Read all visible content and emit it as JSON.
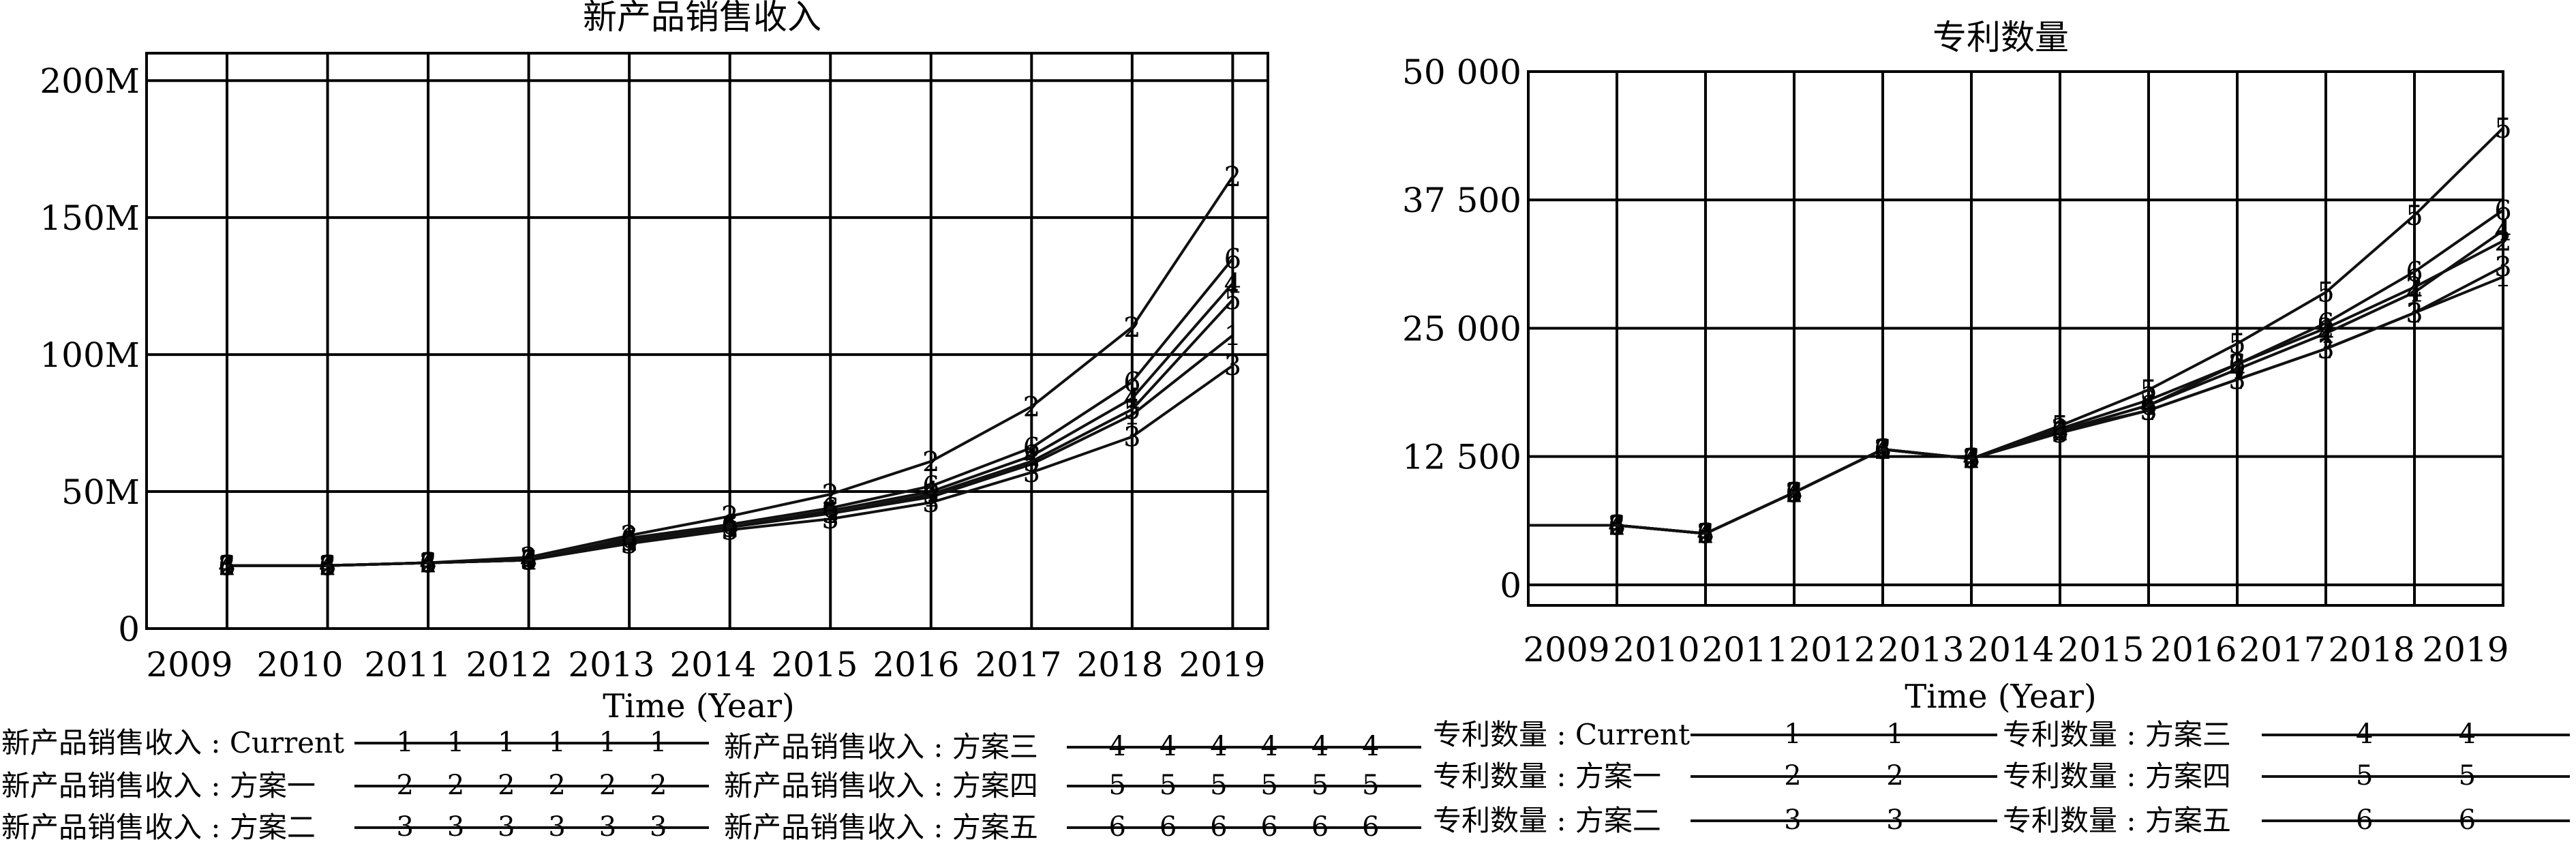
{
  "chart_data": [
    {
      "type": "line",
      "title": "新产品销售收入",
      "xlabel": "Time (Year)",
      "ylabel": "",
      "x": [
        2009,
        2010,
        2011,
        2012,
        2013,
        2014,
        2015,
        2016,
        2017,
        2018,
        2019
      ],
      "x_tick_labels": [
        "2009",
        "2010",
        "2011",
        "2012",
        "2013",
        "2014",
        "2015",
        "2016",
        "2017",
        "2018",
        "2019"
      ],
      "xlim": [
        2008.2,
        2019.35
      ],
      "ylim": [
        0,
        210
      ],
      "y_ticks": [
        0,
        50,
        100,
        150,
        200
      ],
      "y_tick_labels": [
        "0",
        "50M",
        "100M",
        "150M",
        "200M"
      ],
      "grid": true,
      "series": [
        {
          "name": "新产品销售收入 : Current",
          "label": "1",
          "values": [
            23,
            23,
            24,
            25,
            32,
            37,
            42,
            48,
            60,
            78,
            107
          ]
        },
        {
          "name": "新产品销售收入 : 方案一",
          "label": "2",
          "values": [
            23,
            23,
            24,
            26,
            34,
            41,
            49,
            61,
            81,
            110,
            165
          ]
        },
        {
          "name": "新产品销售收入 : 方案二",
          "label": "3",
          "values": [
            23,
            23,
            24,
            25,
            31,
            36,
            40,
            46,
            57,
            70,
            96
          ]
        },
        {
          "name": "新产品销售收入 : 方案三",
          "label": "4",
          "values": [
            23,
            23,
            24,
            25,
            32,
            37,
            43,
            50,
            63,
            84,
            126
          ]
        },
        {
          "name": "新产品销售收入 : 方案四",
          "label": "5",
          "values": [
            23,
            23,
            24,
            25,
            32,
            37,
            42,
            49,
            61,
            80,
            120
          ]
        },
        {
          "name": "新产品销售收入 : 方案五",
          "label": "6",
          "values": [
            23,
            23,
            24,
            25,
            33,
            38,
            44,
            52,
            66,
            90,
            135
          ]
        }
      ]
    },
    {
      "type": "line",
      "title": "专利数量",
      "xlabel": "Time (Year)",
      "ylabel": "",
      "x": [
        2009,
        2010,
        2011,
        2012,
        2013,
        2014,
        2015,
        2016,
        2017,
        2018,
        2019
      ],
      "x_tick_labels": [
        "2009",
        "2010",
        "2011",
        "2012",
        "2013",
        "2014",
        "2015",
        "2016",
        "2017",
        "2018",
        "2019"
      ],
      "xlim": [
        2008.0,
        2019.0
      ],
      "ylim": [
        -2000,
        50000
      ],
      "y_ticks": [
        0,
        12500,
        25000,
        37500,
        50000
      ],
      "y_tick_labels": [
        "0",
        "12 500",
        "25 000",
        "37 500",
        "50 000"
      ],
      "grid": true,
      "series": [
        {
          "name": "专利数量 : Current",
          "label": "1",
          "values": [
            5800,
            5000,
            9000,
            13200,
            12300,
            15000,
            17000,
            20000,
            23000,
            26500,
            30000
          ]
        },
        {
          "name": "专利数量 : 方案一",
          "label": "2",
          "values": [
            5800,
            5000,
            9000,
            13200,
            12300,
            15200,
            18000,
            21500,
            25000,
            29000,
            33500
          ]
        },
        {
          "name": "专利数量 : 方案二",
          "label": "3",
          "values": [
            5800,
            5000,
            9000,
            13200,
            12300,
            14800,
            17000,
            20000,
            23000,
            26500,
            31000
          ]
        },
        {
          "name": "专利数量 : 方案三",
          "label": "4",
          "values": [
            5800,
            5000,
            9000,
            13200,
            12300,
            15000,
            17500,
            21000,
            24500,
            28500,
            34500
          ]
        },
        {
          "name": "专利数量 : 方案四",
          "label": "5",
          "values": [
            5800,
            5000,
            9000,
            13200,
            12300,
            15500,
            19000,
            23500,
            28500,
            36000,
            44500
          ]
        },
        {
          "name": "专利数量 : 方案五",
          "label": "6",
          "values": [
            5800,
            5000,
            9000,
            13200,
            12300,
            15000,
            17500,
            21500,
            25500,
            30500,
            36500
          ]
        }
      ]
    }
  ],
  "legend_left": [
    {
      "name": "新产品销售收入 : Current",
      "marker": "1"
    },
    {
      "name": "新产品销售收入 : 方案一",
      "marker": "2"
    },
    {
      "name": "新产品销售收入 : 方案二",
      "marker": "3"
    },
    {
      "name": "新产品销售收入 : 方案三",
      "marker": "4"
    },
    {
      "name": "新产品销售收入 : 方案四",
      "marker": "5"
    },
    {
      "name": "新产品销售收入 : 方案五",
      "marker": "6"
    }
  ],
  "legend_right": [
    {
      "name": "专利数量 : Current",
      "marker": "1"
    },
    {
      "name": "专利数量 : 方案一",
      "marker": "2"
    },
    {
      "name": "专利数量 : 方案二",
      "marker": "3"
    },
    {
      "name": "专利数量 : 方案三",
      "marker": "4"
    },
    {
      "name": "专利数量 : 方案四",
      "marker": "5"
    },
    {
      "name": "专利数量 : 方案五",
      "marker": "6"
    }
  ]
}
